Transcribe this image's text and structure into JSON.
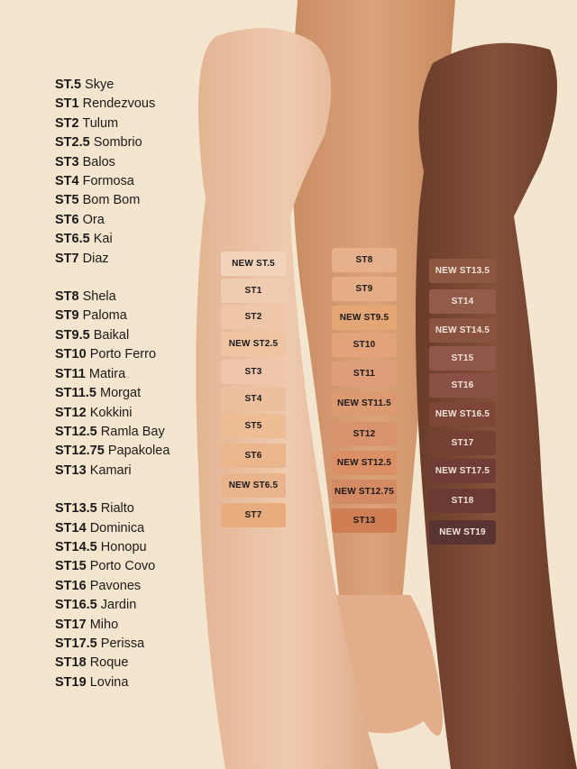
{
  "legend": {
    "groups": [
      [
        {
          "code": "ST.5",
          "name": "Skye"
        },
        {
          "code": "ST1",
          "name": "Rendezvous"
        },
        {
          "code": "ST2",
          "name": "Tulum"
        },
        {
          "code": "ST2.5",
          "name": "Sombrio"
        },
        {
          "code": "ST3",
          "name": "Balos"
        },
        {
          "code": "ST4",
          "name": "Formosa"
        },
        {
          "code": "ST5",
          "name": "Bom Bom"
        },
        {
          "code": "ST6",
          "name": "Ora"
        },
        {
          "code": "ST6.5",
          "name": "Kai"
        },
        {
          "code": "ST7",
          "name": "Diaz"
        }
      ],
      [
        {
          "code": "ST8",
          "name": "Shela"
        },
        {
          "code": "ST9",
          "name": "Paloma"
        },
        {
          "code": "ST9.5",
          "name": "Baikal"
        },
        {
          "code": "ST10",
          "name": "Porto Ferro"
        },
        {
          "code": "ST11",
          "name": "Matira"
        },
        {
          "code": "ST11.5",
          "name": "Morgat"
        },
        {
          "code": "ST12",
          "name": "Kokkini"
        },
        {
          "code": "ST12.5",
          "name": "Ramla Bay"
        },
        {
          "code": "ST12.75",
          "name": "Papakolea"
        },
        {
          "code": "ST13",
          "name": "Kamari"
        }
      ],
      [
        {
          "code": "ST13.5",
          "name": "Rialto"
        },
        {
          "code": "ST14",
          "name": "Dominica"
        },
        {
          "code": "ST14.5",
          "name": "Honopu"
        },
        {
          "code": "ST15",
          "name": "Porto Covo"
        },
        {
          "code": "ST16",
          "name": "Pavones"
        },
        {
          "code": "ST16.5",
          "name": "Jardin"
        },
        {
          "code": "ST17",
          "name": "Miho"
        },
        {
          "code": "ST17.5",
          "name": "Perissa"
        },
        {
          "code": "ST18",
          "name": "Roque"
        },
        {
          "code": "ST19",
          "name": "Lovina"
        }
      ]
    ]
  },
  "colors": {
    "background": "#f4e5cf",
    "arm_light": "#ebc4a6",
    "arm_medium": "#d69d74",
    "arm_deep": "#7b4a34"
  },
  "swatches": {
    "light_arm": [
      {
        "label": "NEW ST.5",
        "color": "#f2d4bd"
      },
      {
        "label": "ST1",
        "color": "#f0cbb0"
      },
      {
        "label": "ST2",
        "color": "#eec7a8"
      },
      {
        "label": "NEW ST2.5",
        "color": "#eec4a2"
      },
      {
        "label": "ST3",
        "color": "#efc6aa"
      },
      {
        "label": "ST4",
        "color": "#ecbf9e"
      },
      {
        "label": "ST5",
        "color": "#eebd94"
      },
      {
        "label": "ST6",
        "color": "#ebb68c"
      },
      {
        "label": "NEW ST6.5",
        "color": "#e9b38c"
      },
      {
        "label": "ST7",
        "color": "#e8ad7e"
      }
    ],
    "medium_arm": [
      {
        "label": "ST8",
        "color": "#e6b08a"
      },
      {
        "label": "ST9",
        "color": "#e5ad86"
      },
      {
        "label": "NEW ST9.5",
        "color": "#e4a675"
      },
      {
        "label": "ST10",
        "color": "#e2a27a"
      },
      {
        "label": "ST11",
        "color": "#dd9e79"
      },
      {
        "label": "NEW ST11.5",
        "color": "#db9a70"
      },
      {
        "label": "ST12",
        "color": "#d9946d"
      },
      {
        "label": "NEW ST12.5",
        "color": "#da9064"
      },
      {
        "label": "NEW ST12.75",
        "color": "#d48a62"
      },
      {
        "label": "ST13",
        "color": "#d07f54"
      }
    ],
    "deep_arm": [
      {
        "label": "NEW ST13.5",
        "color": "#8c563f"
      },
      {
        "label": "ST14",
        "color": "#935c4a"
      },
      {
        "label": "NEW ST14.5",
        "color": "#8a533f"
      },
      {
        "label": "ST15",
        "color": "#90564a"
      },
      {
        "label": "ST16",
        "color": "#8b5045"
      },
      {
        "label": "NEW ST16.5",
        "color": "#7d4636"
      },
      {
        "label": "ST17",
        "color": "#774035"
      },
      {
        "label": "NEW ST17.5",
        "color": "#6f3d36"
      },
      {
        "label": "ST18",
        "color": "#6b3a35"
      },
      {
        "label": "NEW ST19",
        "color": "#5a3432"
      }
    ]
  }
}
